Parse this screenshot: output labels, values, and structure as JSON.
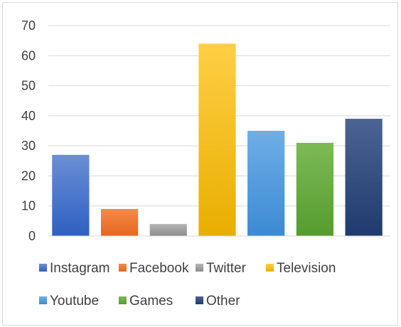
{
  "chart_data": {
    "type": "bar",
    "categories": [
      "Instagram",
      "Facebook",
      "Twitter",
      "Television",
      "Youtube",
      "Games",
      "Other"
    ],
    "values": [
      27,
      9,
      4,
      64,
      35,
      31,
      39
    ],
    "colors": [
      [
        "#6a8fd6",
        "#2f5fc2"
      ],
      [
        "#f48a4a",
        "#e8661d"
      ],
      [
        "#b5b5b5",
        "#8c8c8c"
      ],
      [
        "#ffcf45",
        "#e8ae00"
      ],
      [
        "#6faee6",
        "#3b8ad4"
      ],
      [
        "#7dba55",
        "#559c2e"
      ],
      [
        "#4c6494",
        "#1f3a6e"
      ]
    ],
    "ylim": [
      0,
      70
    ],
    "yticks": [
      "0",
      "10",
      "20",
      "30",
      "40",
      "50",
      "60",
      "70"
    ],
    "grid": true,
    "legend_position": "bottom",
    "legend": [
      "Instagram",
      "Facebook",
      "Twitter",
      "Television",
      "Youtube",
      "Games",
      "Other"
    ]
  }
}
